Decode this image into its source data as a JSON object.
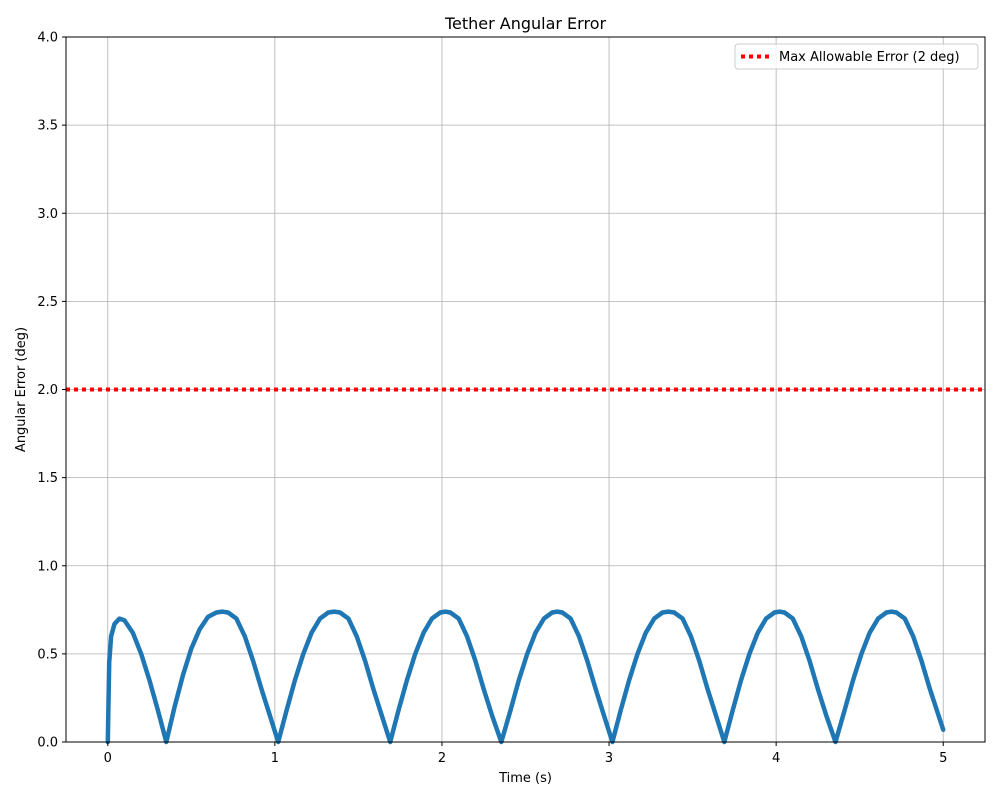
{
  "chart_data": {
    "type": "line",
    "title": "Tether Angular Error",
    "xlabel": "Time (s)",
    "ylabel": "Angular Error (deg)",
    "xlim": [
      -0.25,
      5.25
    ],
    "ylim": [
      0,
      4
    ],
    "xticks": [
      0,
      1,
      2,
      3,
      4,
      5
    ],
    "xtick_labels": [
      "0",
      "1",
      "2",
      "3",
      "4",
      "5"
    ],
    "yticks": [
      0,
      0.5,
      1,
      1.5,
      2,
      2.5,
      3,
      3.5,
      4
    ],
    "ytick_labels": [
      "0.0",
      "0.5",
      "1.0",
      "1.5",
      "2.0",
      "2.5",
      "3.0",
      "3.5",
      "4.0"
    ],
    "grid": true,
    "legend_position": "top-right",
    "series": [
      {
        "color": "#1f77b4",
        "style": "solid",
        "x": [
          0,
          0.0083,
          0.02,
          0.04,
          0.07,
          0.1,
          0.15,
          0.2,
          0.25,
          0.3,
          0.35,
          0.4,
          0.45,
          0.5,
          0.55,
          0.6,
          0.65,
          0.685,
          0.72,
          0.77,
          0.82,
          0.87,
          0.92,
          0.97,
          1.02,
          1.07,
          1.12,
          1.17,
          1.22,
          1.27,
          1.32,
          1.355,
          1.39,
          1.44,
          1.49,
          1.54,
          1.59,
          1.64,
          1.69,
          1.74,
          1.79,
          1.84,
          1.89,
          1.94,
          1.99,
          2.02,
          2.05,
          2.1,
          2.15,
          2.2,
          2.25,
          2.3,
          2.355,
          2.41,
          2.46,
          2.51,
          2.56,
          2.61,
          2.66,
          2.69,
          2.72,
          2.77,
          2.82,
          2.87,
          2.92,
          2.97,
          3.02,
          3.07,
          3.12,
          3.17,
          3.22,
          3.27,
          3.32,
          3.355,
          3.39,
          3.44,
          3.49,
          3.54,
          3.59,
          3.64,
          3.69,
          3.74,
          3.79,
          3.84,
          3.89,
          3.94,
          3.99,
          4.02,
          4.05,
          4.1,
          4.15,
          4.2,
          4.25,
          4.3,
          4.355,
          4.41,
          4.46,
          4.51,
          4.56,
          4.61,
          4.66,
          4.69,
          4.72,
          4.77,
          4.82,
          4.87,
          4.92,
          5.0
        ],
        "y": [
          0,
          0.45,
          0.6,
          0.67,
          0.7,
          0.69,
          0.62,
          0.5,
          0.35,
          0.18,
          0,
          0.2,
          0.38,
          0.53,
          0.64,
          0.71,
          0.735,
          0.74,
          0.735,
          0.7,
          0.6,
          0.46,
          0.3,
          0.15,
          0,
          0.18,
          0.35,
          0.5,
          0.62,
          0.7,
          0.735,
          0.74,
          0.735,
          0.7,
          0.6,
          0.46,
          0.3,
          0.15,
          0,
          0.18,
          0.35,
          0.5,
          0.62,
          0.7,
          0.735,
          0.74,
          0.735,
          0.7,
          0.6,
          0.46,
          0.3,
          0.15,
          0,
          0.18,
          0.35,
          0.5,
          0.62,
          0.7,
          0.735,
          0.74,
          0.735,
          0.7,
          0.6,
          0.46,
          0.3,
          0.15,
          0,
          0.18,
          0.35,
          0.5,
          0.62,
          0.7,
          0.735,
          0.74,
          0.735,
          0.7,
          0.6,
          0.46,
          0.3,
          0.15,
          0,
          0.18,
          0.35,
          0.5,
          0.62,
          0.7,
          0.735,
          0.74,
          0.735,
          0.7,
          0.6,
          0.46,
          0.3,
          0.15,
          0,
          0.18,
          0.35,
          0.5,
          0.62,
          0.7,
          0.735,
          0.74,
          0.735,
          0.7,
          0.6,
          0.46,
          0.3,
          0.07
        ]
      },
      {
        "name": "Max Allowable Error (2 deg)",
        "color": "#ff0000",
        "style": "dotted",
        "x": [
          -0.25,
          5.25
        ],
        "y": [
          2,
          2
        ]
      }
    ]
  }
}
